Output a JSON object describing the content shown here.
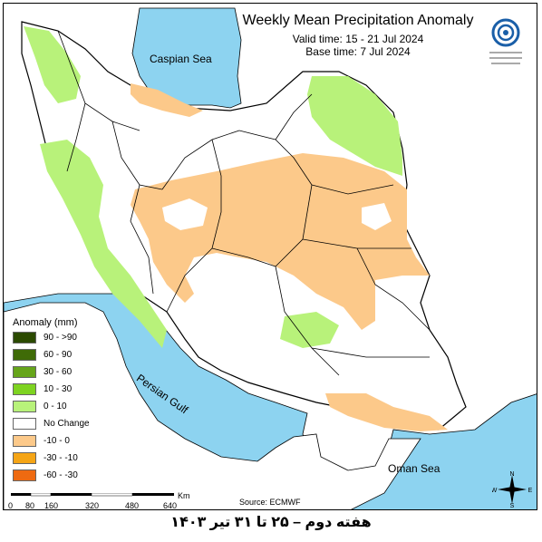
{
  "title": "Weekly Mean Precipitation Anomaly",
  "valid_time": "Valid time: 15 - 21 Jul 2024",
  "base_time": "Base time: 7 Jul 2024",
  "legend": {
    "title": "Anomaly (mm)",
    "items": [
      {
        "label": "90 - >90",
        "color": "#2b4a00"
      },
      {
        "label": "60 - 90",
        "color": "#3f6b07"
      },
      {
        "label": "30 - 60",
        "color": "#66a51a"
      },
      {
        "label": "10 - 30",
        "color": "#7ed321"
      },
      {
        "label": "0 - 10",
        "color": "#b8f27a"
      },
      {
        "label": "No Change",
        "color": "#ffffff"
      },
      {
        "label": "-10 - 0",
        "color": "#fcc98a"
      },
      {
        "label": "-30 - -10",
        "color": "#f5a516"
      },
      {
        "label": "-60 - -30",
        "color": "#ee6a11"
      }
    ]
  },
  "seas": {
    "caspian": "Caspian Sea",
    "persian_gulf": "Persian Gulf",
    "oman": "Oman Sea"
  },
  "source": "Source: ECMWF",
  "scale": {
    "ticks": [
      "0",
      "80",
      "160",
      "320",
      "480",
      "640"
    ],
    "unit": "Km"
  },
  "compass": {
    "n": "N",
    "s": "S",
    "e": "E",
    "w": "W"
  },
  "caption": "هفته دوم – ۲۵ تا ۳۱ تیر ۱۴۰۳",
  "colors": {
    "sea": "#8dd3f0",
    "land": "#ffffff",
    "border": "#000000",
    "light_green": "#b8f27a",
    "light_orange": "#fcc98a"
  }
}
